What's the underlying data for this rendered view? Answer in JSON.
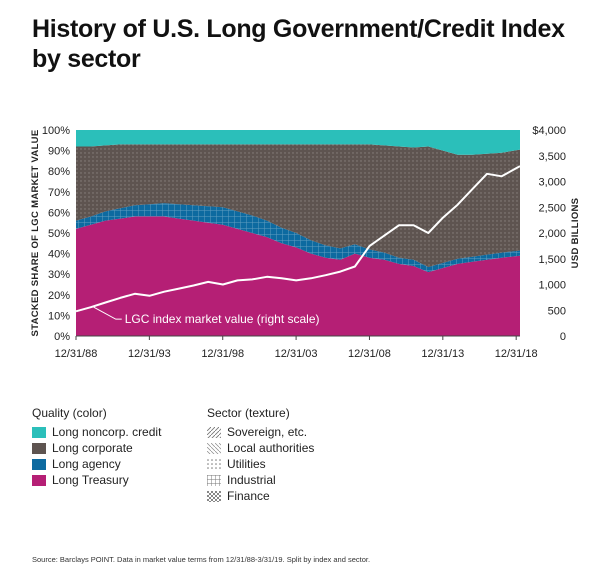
{
  "title": "History of U.S. Long Government/Credit Index by sector",
  "colors": {
    "noncorp": "#2bbfba",
    "corporate": "#5e5450",
    "agency": "#0d6aa0",
    "treasury": "#b51f75",
    "line": "#ffffff"
  },
  "chart_data": {
    "type": "area",
    "xlabel": "",
    "ylabel": "STACKED SHARE OF LGC MARKET VALUE",
    "y2label": "USD BILLIONS",
    "x_ticks": [
      "12/31/88",
      "12/31/93",
      "12/31/98",
      "12/31/03",
      "12/31/08",
      "12/31/13",
      "12/31/18"
    ],
    "y_ticks": [
      "0%",
      "10%",
      "20%",
      "30%",
      "40%",
      "50%",
      "60%",
      "70%",
      "80%",
      "90%",
      "100%"
    ],
    "y2_ticks": [
      "0",
      "500",
      "1,000",
      "1,500",
      "2,000",
      "2,500",
      "3,000",
      "3,500",
      "$4,000"
    ],
    "ylim": [
      0,
      100
    ],
    "y2lim": [
      0,
      4000
    ],
    "x": [
      1988.99,
      1990,
      1991,
      1992,
      1993,
      1994,
      1995,
      1996,
      1997,
      1998,
      1999,
      2000,
      2001,
      2002,
      2003,
      2004,
      2005,
      2006,
      2007,
      2008,
      2009,
      2010,
      2011,
      2012,
      2013,
      2014,
      2015,
      2016,
      2017,
      2018,
      2019.25
    ],
    "series": [
      {
        "name": "Long Treasury",
        "role": "treasury",
        "values": [
          52,
          54,
          56,
          57,
          58,
          58,
          58,
          57,
          56,
          55,
          54,
          52,
          50,
          48,
          45,
          43,
          40,
          38,
          37,
          40,
          38,
          37,
          35,
          34,
          31,
          33,
          35,
          36,
          37,
          38,
          39
        ]
      },
      {
        "name": "Long agency",
        "role": "agency",
        "values": [
          4,
          4,
          4.5,
          5,
          5.5,
          6,
          6.5,
          7,
          7.5,
          8,
          8.5,
          8.5,
          8.5,
          8,
          7.5,
          7,
          6.5,
          6,
          5.5,
          4.5,
          4,
          3.5,
          3,
          3,
          2.5,
          2.5,
          2.5,
          2.5,
          2.5,
          2.5,
          2.5
        ]
      },
      {
        "name": "Long corporate",
        "role": "corporate",
        "values": [
          36,
          34,
          32,
          31,
          29.5,
          29,
          28.5,
          29,
          29.5,
          30,
          30.5,
          32.5,
          34.5,
          37,
          40.5,
          43,
          46.5,
          49,
          50.5,
          48.5,
          51,
          52,
          54,
          54.5,
          58.5,
          54.5,
          50.5,
          49.5,
          49,
          48.5,
          49
        ]
      },
      {
        "name": "Long noncorp. credit",
        "role": "noncorp",
        "values": [
          8,
          8,
          7.5,
          7,
          7,
          7,
          7,
          7,
          7,
          7,
          7,
          7,
          7,
          7,
          7,
          7,
          7,
          7,
          7,
          7,
          7,
          7.5,
          8,
          8.5,
          8,
          10,
          12,
          12,
          11.5,
          11,
          9.5
        ]
      }
    ],
    "line_series": {
      "name": "LGC index market value",
      "axis": "right",
      "values": [
        480,
        560,
        650,
        740,
        820,
        780,
        860,
        920,
        980,
        1050,
        1000,
        1080,
        1100,
        1150,
        1120,
        1080,
        1120,
        1180,
        1250,
        1350,
        1750,
        1950,
        2150,
        2150,
        2000,
        2300,
        2550,
        2850,
        3150,
        3100,
        3300
      ]
    },
    "annotation": "LGC index market value (right scale)",
    "legend": {
      "quality_title": "Quality (color)",
      "quality_items": [
        {
          "label": "Long noncorp. credit",
          "role": "noncorp"
        },
        {
          "label": "Long corporate",
          "role": "corporate"
        },
        {
          "label": "Long agency",
          "role": "agency"
        },
        {
          "label": "Long Treasury",
          "role": "treasury"
        }
      ],
      "sector_title": "Sector (texture)",
      "sector_items": [
        {
          "label": "Sovereign, etc.",
          "texture": "diagonal"
        },
        {
          "label": "Local authorities",
          "texture": "diagonal-fine"
        },
        {
          "label": "Utilities",
          "texture": "dots"
        },
        {
          "label": "Industrial",
          "texture": "grid"
        },
        {
          "label": "Finance",
          "texture": "blocks"
        }
      ]
    }
  },
  "source": "Source: Barclays POINT. Data in market value terms from 12/31/88-3/31/19. Split by index and sector."
}
